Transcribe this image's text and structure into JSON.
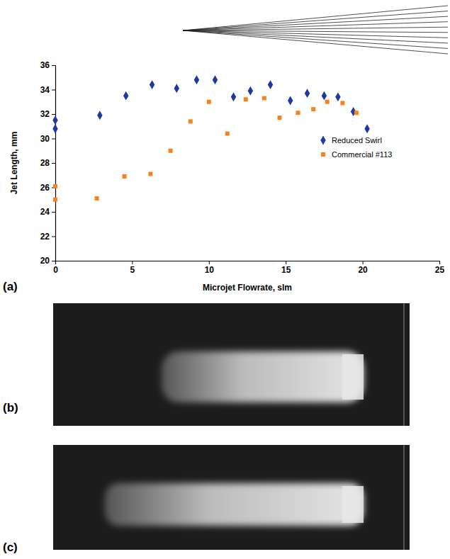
{
  "chart_data": {
    "type": "scatter",
    "x_label": "Microjet Flowrate, slm",
    "y_label": "Jet Length, mm",
    "xlim": [
      0,
      25
    ],
    "xticks": [
      0,
      5,
      10,
      15,
      20,
      25
    ],
    "ylim": [
      20,
      36
    ],
    "yticks": [
      20,
      22,
      24,
      26,
      28,
      30,
      32,
      34,
      36
    ],
    "grid": false,
    "legend": "right",
    "series": [
      {
        "name": "Reduced Swirl",
        "color": "#1f3a9e",
        "marker": "diamond",
        "x": [
          0,
          0,
          2.9,
          4.6,
          6.3,
          7.9,
          9.2,
          10.4,
          11.6,
          12.7,
          14.0,
          15.3,
          16.4,
          17.5,
          18.4,
          19.4,
          20.3
        ],
        "values": [
          31.5,
          30.8,
          31.9,
          33.5,
          34.4,
          34.1,
          34.8,
          34.8,
          33.4,
          33.9,
          34.4,
          33.1,
          33.7,
          33.5,
          33.4,
          32.2,
          30.8
        ]
      },
      {
        "name": "Commercial #113",
        "color": "#f7821e",
        "marker": "square",
        "x": [
          0,
          0,
          2.7,
          4.5,
          6.2,
          7.5,
          8.8,
          10.0,
          11.2,
          12.4,
          13.6,
          14.6,
          15.8,
          16.8,
          17.7,
          18.7,
          19.6
        ],
        "values": [
          26.1,
          25.0,
          25.1,
          26.9,
          27.1,
          29.0,
          31.4,
          33.0,
          30.4,
          33.2,
          33.3,
          31.7,
          32.1,
          32.4,
          33.0,
          32.9,
          32.1
        ]
      }
    ]
  },
  "panel_labels": [
    "(a)",
    "(b)",
    "(c)"
  ]
}
